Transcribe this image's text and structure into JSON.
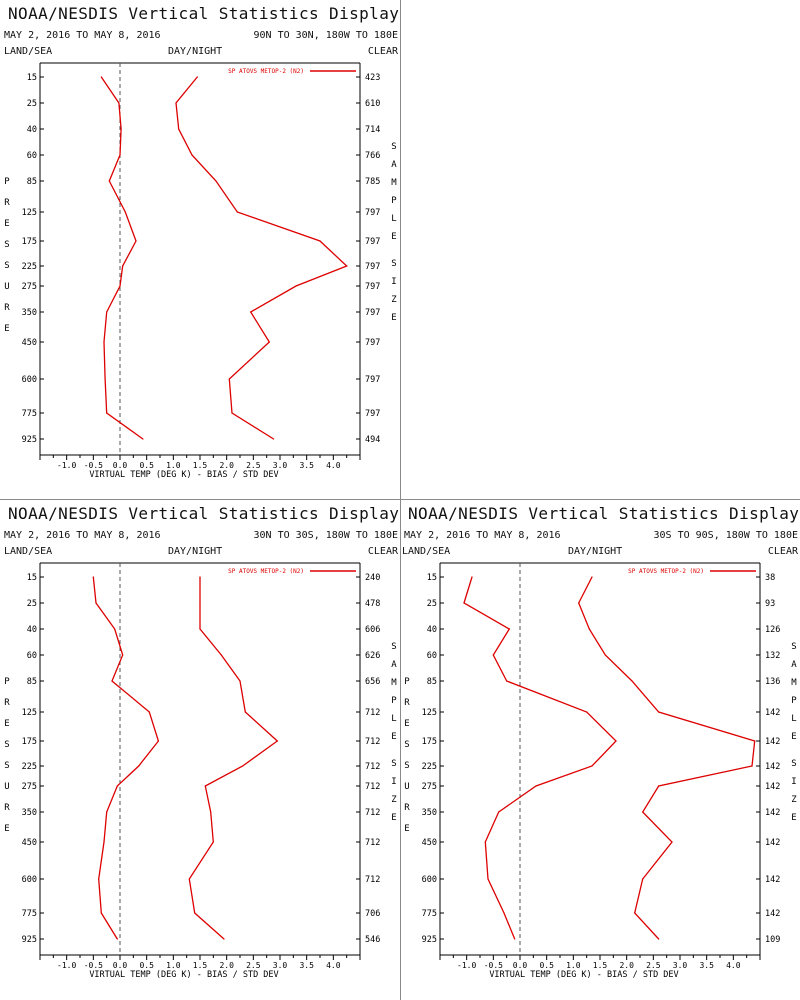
{
  "colors": {
    "series": "#dd0000",
    "axis": "#000000",
    "zero_line": "#555555",
    "divider": "#8a8a8a"
  },
  "panels": [
    {
      "title": "NOAA/NESDIS Vertical Statistics Display",
      "date_range": "MAY 2, 2016 TO MAY 8, 2016",
      "region": "90N TO 30N, 180W TO 180E",
      "land_sea": "LAND/SEA",
      "day_night": "DAY/NIGHT",
      "clear": "CLEAR",
      "chart_data": {
        "type": "line",
        "legend": "SP ATOVS METOP-2 (N2)",
        "xlabel": "VIRTUAL TEMP (DEG K) - BIAS / STD DEV",
        "ylabel": "PRESSURE",
        "right_label": "SAMPLE SIZE",
        "xlim": [
          -1.5,
          4.5
        ],
        "x_ticks": [
          "-1.0",
          "-0.5",
          "0.0",
          "0.5",
          "1.0",
          "1.5",
          "2.0",
          "2.5",
          "3.0",
          "3.5",
          "4.0"
        ],
        "pressure_levels": [
          "15",
          "25",
          "40",
          "60",
          "85",
          "125",
          "175",
          "225",
          "275",
          "350",
          "450",
          "600",
          "775",
          "925"
        ],
        "sample_sizes": [
          "423",
          "610",
          "714",
          "766",
          "785",
          "797",
          "797",
          "797",
          "797",
          "797",
          "797",
          "797",
          "797",
          "494"
        ],
        "series": [
          {
            "name": "bias",
            "values": [
              -0.35,
              -0.02,
              0.02,
              0.0,
              -0.2,
              0.1,
              0.3,
              0.05,
              0.0,
              -0.25,
              -0.3,
              -0.28,
              -0.25,
              0.43
            ]
          },
          {
            "name": "std_dev",
            "values": [
              1.45,
              1.05,
              1.1,
              1.35,
              1.8,
              2.2,
              3.75,
              4.25,
              3.3,
              2.45,
              2.8,
              2.05,
              2.1,
              2.88
            ]
          }
        ]
      }
    },
    {
      "title": "NOAA/NESDIS Vertical Statistics Display",
      "date_range": "MAY 2, 2016 TO MAY 8, 2016",
      "region": "30N TO 30S, 180W TO 180E",
      "land_sea": "LAND/SEA",
      "day_night": "DAY/NIGHT",
      "clear": "CLEAR",
      "chart_data": {
        "type": "line",
        "legend": "SP ATOVS METOP-2 (N2)",
        "xlabel": "VIRTUAL TEMP (DEG K) - BIAS / STD DEV",
        "ylabel": "PRESSURE",
        "right_label": "SAMPLE SIZE",
        "xlim": [
          -1.5,
          4.5
        ],
        "x_ticks": [
          "-1.0",
          "-0.5",
          "0.0",
          "0.5",
          "1.0",
          "1.5",
          "2.0",
          "2.5",
          "3.0",
          "3.5",
          "4.0"
        ],
        "pressure_levels": [
          "15",
          "25",
          "40",
          "60",
          "85",
          "125",
          "175",
          "225",
          "275",
          "350",
          "450",
          "600",
          "775",
          "925"
        ],
        "sample_sizes": [
          "240",
          "478",
          "606",
          "626",
          "656",
          "712",
          "712",
          "712",
          "712",
          "712",
          "712",
          "712",
          "706",
          "546"
        ],
        "series": [
          {
            "name": "bias",
            "values": [
              -0.5,
              -0.45,
              -0.1,
              0.05,
              -0.15,
              0.55,
              0.72,
              0.35,
              -0.05,
              -0.25,
              -0.3,
              -0.4,
              -0.35,
              -0.05
            ]
          },
          {
            "name": "std_dev",
            "values": [
              1.5,
              1.5,
              1.5,
              1.9,
              2.25,
              2.35,
              2.95,
              2.3,
              1.6,
              1.7,
              1.75,
              1.3,
              1.4,
              1.95
            ]
          }
        ]
      }
    },
    {
      "title": "NOAA/NESDIS Vertical Statistics Display",
      "date_range": "MAY 2, 2016 TO MAY 8, 2016",
      "region": "30S TO 90S, 180W TO 180E",
      "land_sea": "LAND/SEA",
      "day_night": "DAY/NIGHT",
      "clear": "CLEAR",
      "chart_data": {
        "type": "line",
        "legend": "SP ATOVS METOP-2 (N2)",
        "xlabel": "VIRTUAL TEMP (DEG K) - BIAS / STD DEV",
        "ylabel": "PRESSURE",
        "right_label": "SAMPLE SIZE",
        "xlim": [
          -1.5,
          4.5
        ],
        "x_ticks": [
          "-1.0",
          "-0.5",
          "0.0",
          "0.5",
          "1.0",
          "1.5",
          "2.0",
          "2.5",
          "3.0",
          "3.5",
          "4.0"
        ],
        "pressure_levels": [
          "15",
          "25",
          "40",
          "60",
          "85",
          "125",
          "175",
          "225",
          "275",
          "350",
          "450",
          "600",
          "775",
          "925"
        ],
        "sample_sizes": [
          "38",
          "93",
          "126",
          "132",
          "136",
          "142",
          "142",
          "142",
          "142",
          "142",
          "142",
          "142",
          "142",
          "109"
        ],
        "series": [
          {
            "name": "bias",
            "values": [
              -0.9,
              -1.05,
              -0.2,
              -0.5,
              -0.25,
              1.25,
              1.8,
              1.35,
              0.3,
              -0.4,
              -0.65,
              -0.6,
              -0.3,
              -0.1
            ]
          },
          {
            "name": "std_dev",
            "values": [
              1.35,
              1.1,
              1.3,
              1.6,
              2.1,
              2.6,
              4.4,
              4.35,
              2.6,
              2.3,
              2.85,
              2.3,
              2.15,
              2.6
            ]
          }
        ]
      }
    }
  ]
}
